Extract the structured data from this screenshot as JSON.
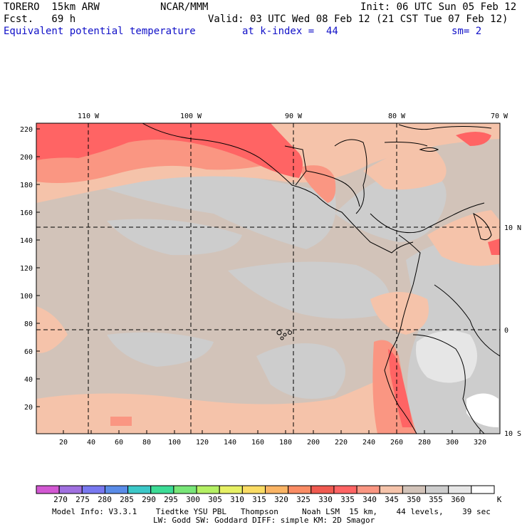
{
  "header": {
    "model": "TORERO  15km ARW",
    "org": "NCAR/MMM",
    "init": "Init: 06 UTC Sun 05 Feb 12",
    "fcst": "Fcst.   69 h",
    "valid": "Valid: 03 UTC Wed 08 Feb 12 (21 CST Tue 07 Feb 12)",
    "field": "Equivalent potential temperature",
    "level": "at k-index =  44",
    "smooth": "sm= 2"
  },
  "map": {
    "lon_labels": [
      "110 W",
      "100 W",
      "90 W",
      "80 W",
      "70 W"
    ],
    "lat_labels": [
      "10 N",
      "0",
      "10 S"
    ],
    "y_ticks": [
      "20",
      "40",
      "60",
      "80",
      "100",
      "120",
      "140",
      "160",
      "180",
      "200",
      "220"
    ],
    "x_ticks": [
      "20",
      "40",
      "60",
      "80",
      "100",
      "120",
      "140",
      "160",
      "180",
      "200",
      "220",
      "240",
      "260",
      "280",
      "300",
      "320"
    ]
  },
  "colorbar": {
    "labels": [
      "270",
      "275",
      "280",
      "285",
      "290",
      "295",
      "300",
      "305",
      "310",
      "315",
      "320",
      "325",
      "330",
      "335",
      "340",
      "345",
      "350",
      "355",
      "360"
    ],
    "unit": "K",
    "colors": [
      "#d258d2",
      "#a070e0",
      "#7878f0",
      "#5a8ce8",
      "#3cc8c8",
      "#3cdc96",
      "#78e678",
      "#b4f064",
      "#e6f064",
      "#fadc64",
      "#fab464",
      "#fa8c64",
      "#f05a50",
      "#ff6464",
      "#fa9682",
      "#f5c3aa",
      "#d2c3b9",
      "#cdcdcd",
      "#e6e6e6",
      "#ffffff"
    ]
  },
  "footer": {
    "line1": "Model Info: V3.3.1    Tiedtke YSU PBL   Thompson     Noah LSM  15 km,    44 levels,    39 sec",
    "line2": "LW: Godd SW: Goddard DIFF: simple KM: 2D Smagor"
  }
}
